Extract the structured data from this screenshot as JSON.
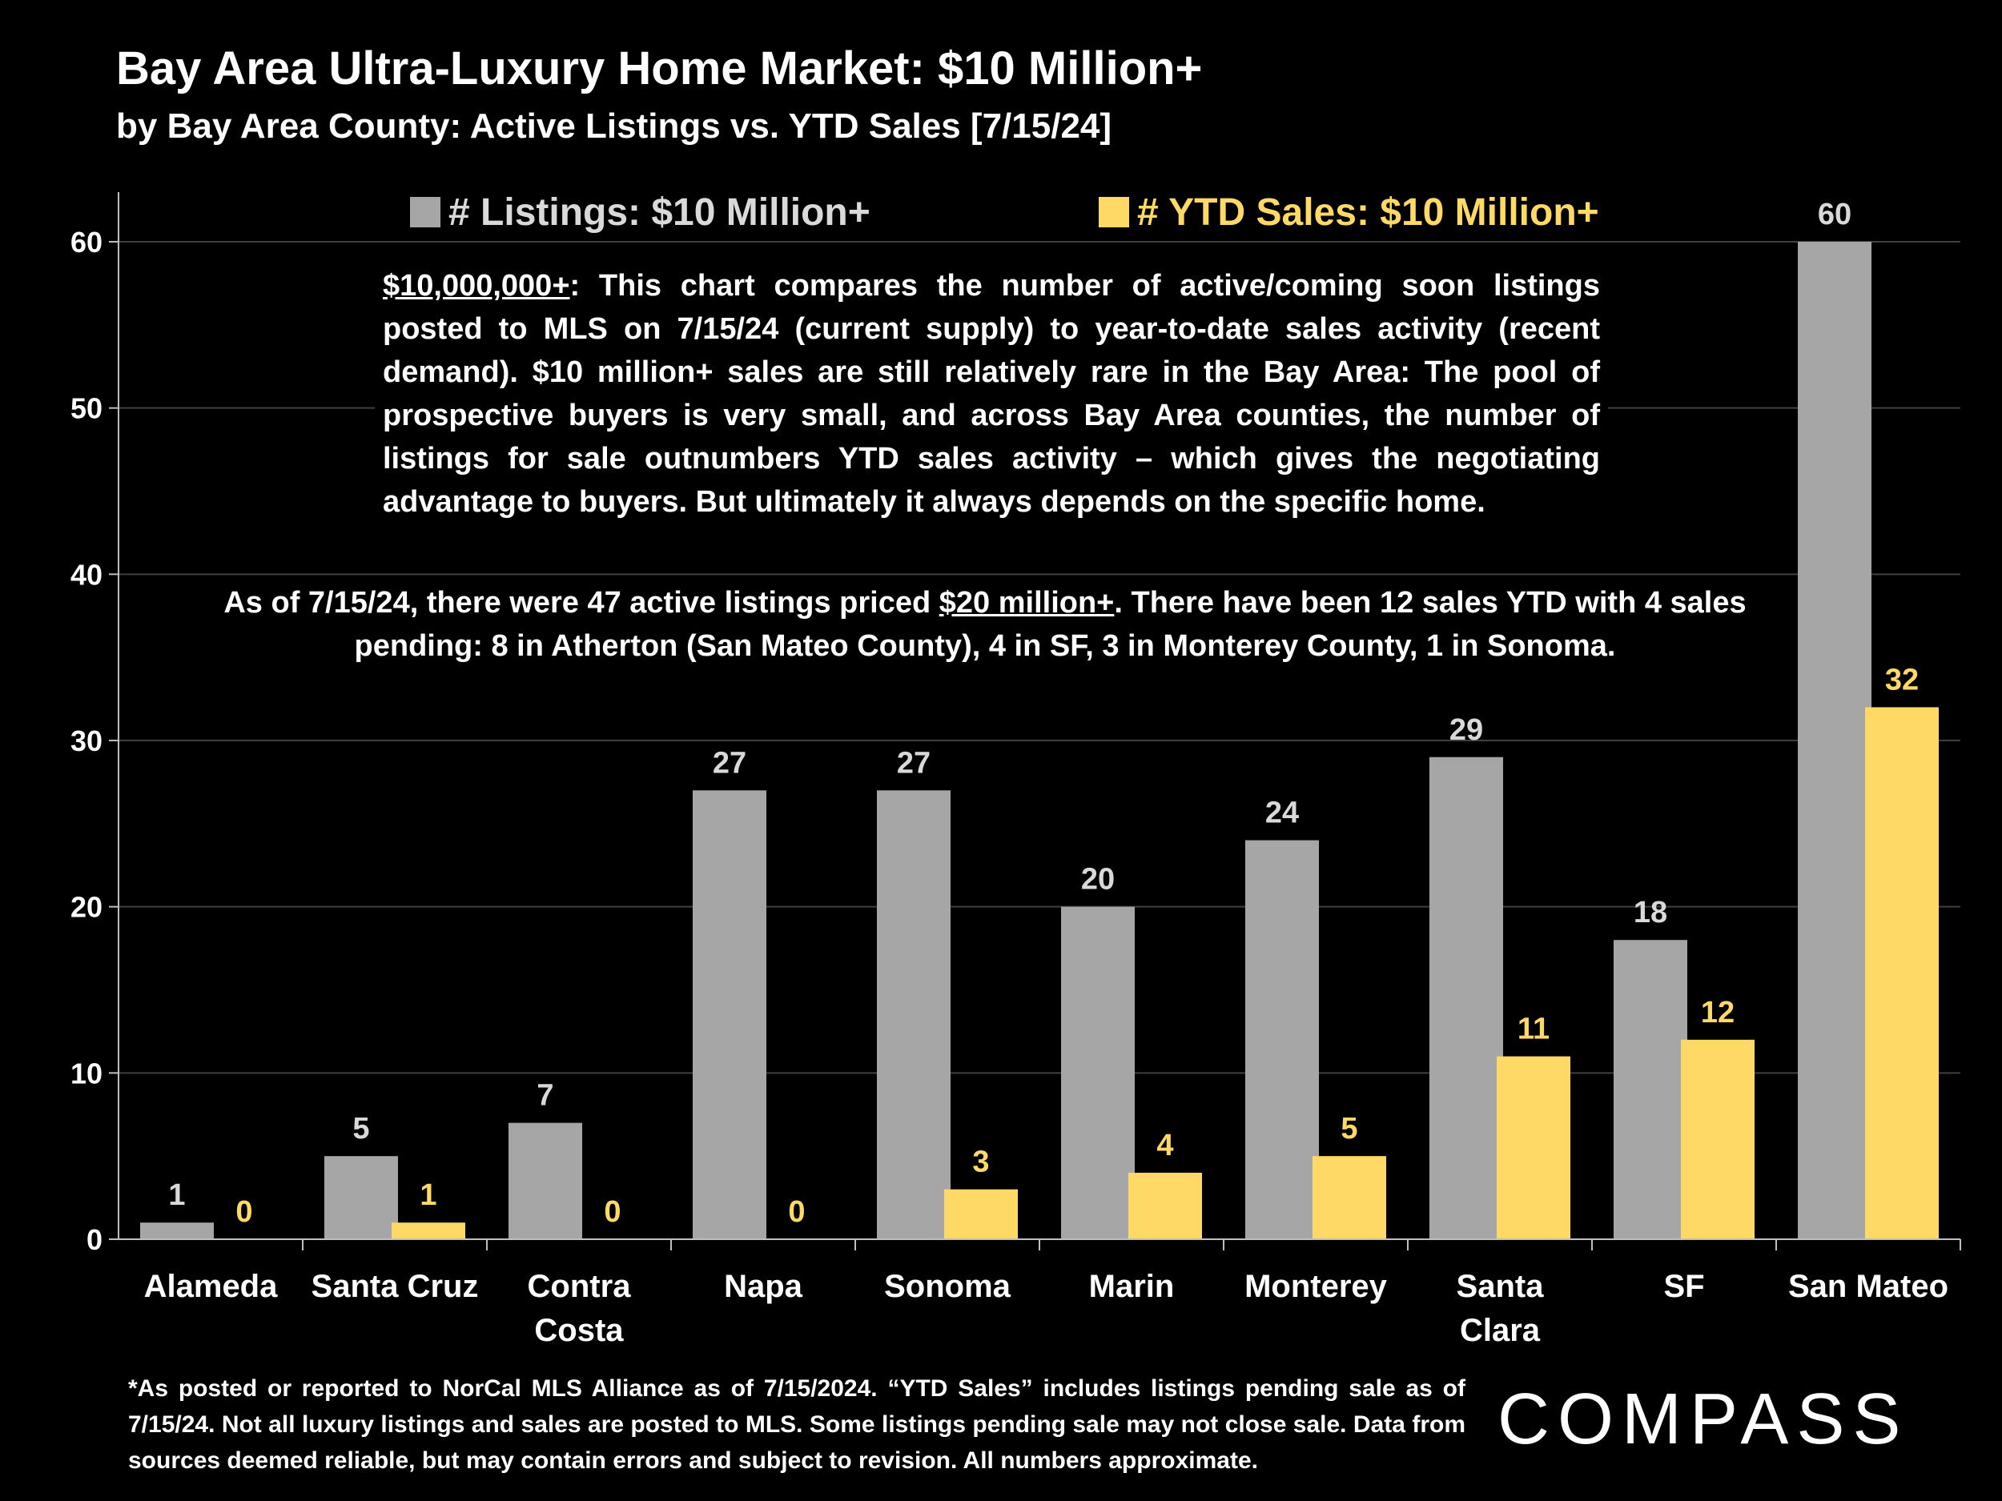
{
  "header": {
    "title": "Bay Area Ultra-Luxury Home Market: $10 Million+",
    "subtitle": "by Bay Area County:  Active Listings vs. YTD Sales [7/15/24]"
  },
  "note1": {
    "lead": "$10,000,000+",
    "body": ":  This chart compares the number of active/coming soon listings posted to MLS on 7/15/24 (current supply) to year-to-date sales activity (recent demand). $10 million+ sales are still relatively rare in the Bay Area:  The pool of prospective buyers is very small, and across Bay Area counties, the number of listings for sale outnumbers YTD sales activity – which gives the negotiating advantage to buyers. But ultimately it always depends on the specific home."
  },
  "note2": {
    "part1": "As of 7/15/24, there were 47 active listings priced ",
    "underlined": "$20 million+",
    "part2": ". There have been 12 sales YTD with 4 sales pending: 8 in Atherton (San Mateo County), 4 in SF, 3 in Monterey County, 1 in Sonoma."
  },
  "footnote": "*As posted or reported to NorCal MLS Alliance as of 7/15/2024. “YTD Sales” includes listings pending sale as of 7/15/24. Not all luxury listings and sales are posted to MLS. Some listings pending sale may not close sale. Data from sources deemed reliable, but may contain errors and subject to revision. All numbers approximate.",
  "logo": "COMPASS",
  "colors": {
    "listings": "#a6a6a6",
    "listings_label": "#d9d9d9",
    "sales": "#ffd966",
    "grid": "#404040",
    "axis_text": "#ffffff"
  },
  "chart_data": {
    "type": "bar",
    "title": "Bay Area Ultra-Luxury Home Market: $10 Million+",
    "xlabel": "",
    "ylabel": "",
    "ylim": [
      0,
      60
    ],
    "yticks": [
      0,
      10,
      20,
      30,
      40,
      50,
      60
    ],
    "grid": true,
    "legend_position": "top",
    "categories": [
      [
        "Alameda"
      ],
      [
        "Santa Cruz"
      ],
      [
        "Contra",
        "Costa"
      ],
      [
        "Napa"
      ],
      [
        "Sonoma"
      ],
      [
        "Marin"
      ],
      [
        "Monterey"
      ],
      [
        "Santa",
        "Clara"
      ],
      [
        "SF"
      ],
      [
        "San Mateo"
      ]
    ],
    "series": [
      {
        "name": "# Listings:  $10 Million+",
        "values": [
          1,
          5,
          7,
          27,
          27,
          20,
          24,
          29,
          18,
          60
        ]
      },
      {
        "name": "# YTD Sales:  $10 Million+",
        "values": [
          0,
          1,
          0,
          0,
          3,
          4,
          5,
          11,
          12,
          32
        ]
      }
    ]
  }
}
